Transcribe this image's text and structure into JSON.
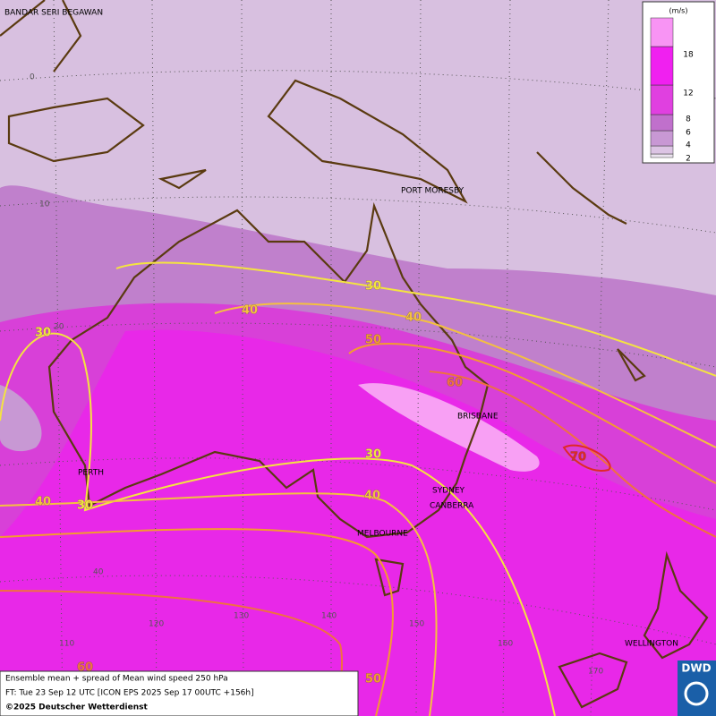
{
  "legend": {
    "unit": "(m/s)",
    "levels": [
      2,
      4,
      6,
      8,
      12,
      18
    ],
    "colors": [
      "#ece4f0",
      "#dcc4e4",
      "#c898d4",
      "#c070cc",
      "#e040e0",
      "#f020f0",
      "#f894f4"
    ]
  },
  "cities": [
    "BANDAR SERI BEGAWAN",
    "PORT MORESBY",
    "BRISBANE",
    "PERTH",
    "SYDNEY",
    "CANBERRA",
    "MELBOURNE",
    "WELLINGTON"
  ],
  "grid_labels": [
    0,
    10,
    20,
    40,
    110,
    120,
    130,
    140,
    150,
    160,
    170
  ],
  "contour_labels": [
    {
      "text": 30,
      "color": "#f4e440"
    },
    {
      "text": 40,
      "color": "#f4c040"
    },
    {
      "text": 40,
      "color": "#f4c040"
    },
    {
      "text": 50,
      "color": "#f49a30"
    },
    {
      "text": 60,
      "color": "#f07040"
    },
    {
      "text": 70,
      "color": "#e02828"
    },
    {
      "text": 30,
      "color": "#f4e440"
    },
    {
      "text": 30,
      "color": "#f4e440"
    },
    {
      "text": 40,
      "color": "#f4c040"
    },
    {
      "text": 40,
      "color": "#f4c040"
    },
    {
      "text": 30,
      "color": "#f4e440"
    },
    {
      "text": 60,
      "color": "#f07040"
    },
    {
      "text": 50,
      "color": "#f49a30"
    }
  ],
  "footer": {
    "line1": "Ensemble mean + spread of Mean wind speed 250 hPa",
    "line2": "FT: Tue 23 Sep 12 UTC [ICON EPS 2025 Sep 17 00UTC +156h]",
    "line3": "©2025 Deutscher Wetterdienst"
  },
  "logo": "DWD"
}
